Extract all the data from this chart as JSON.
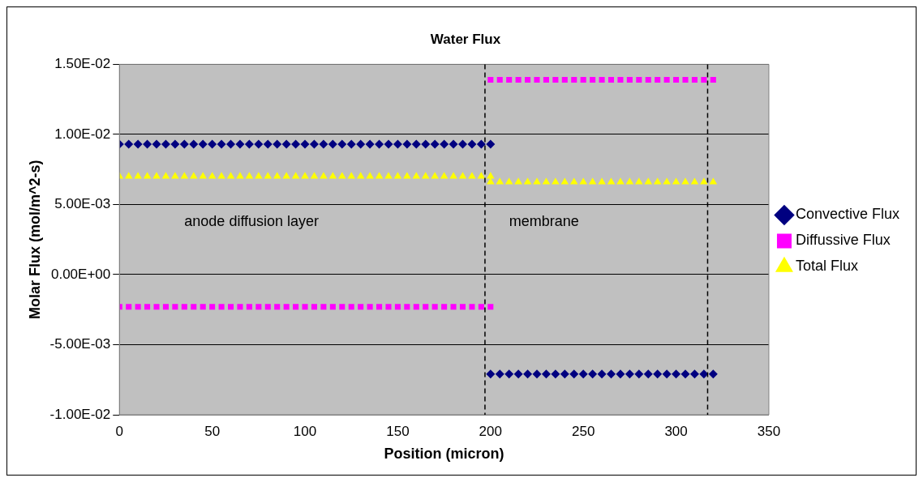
{
  "chart_data": {
    "type": "scatter",
    "title": "Water Flux",
    "xlabel": "Position (micron)",
    "ylabel": "Molar Flux (mol/m^2-s)",
    "x": [
      0,
      5,
      10,
      15,
      20,
      25,
      30,
      35,
      40,
      45,
      50,
      55,
      60,
      65,
      70,
      75,
      80,
      85,
      90,
      95,
      100,
      105,
      110,
      115,
      120,
      125,
      130,
      135,
      140,
      145,
      150,
      155,
      160,
      165,
      170,
      175,
      180,
      185,
      190,
      195,
      200,
      200,
      205,
      210,
      215,
      220,
      225,
      230,
      235,
      240,
      245,
      250,
      255,
      260,
      265,
      270,
      275,
      280,
      285,
      290,
      295,
      300,
      305,
      310,
      315,
      320
    ],
    "series": [
      {
        "name": "Convective Flux",
        "color": "#000080",
        "marker": "diamond",
        "values": [
          0.0093,
          0.0093,
          0.0093,
          0.0093,
          0.0093,
          0.0093,
          0.0093,
          0.0093,
          0.0093,
          0.0093,
          0.0093,
          0.0093,
          0.0093,
          0.0093,
          0.0093,
          0.0093,
          0.0093,
          0.0093,
          0.0093,
          0.0093,
          0.0093,
          0.0093,
          0.0093,
          0.0093,
          0.0093,
          0.0093,
          0.0093,
          0.0093,
          0.0093,
          0.0093,
          0.0093,
          0.0093,
          0.0093,
          0.0093,
          0.0093,
          0.0093,
          0.0093,
          0.0093,
          0.0093,
          0.0093,
          0.0093,
          -0.0071,
          -0.0071,
          -0.0071,
          -0.0071,
          -0.0071,
          -0.0071,
          -0.0071,
          -0.0071,
          -0.0071,
          -0.0071,
          -0.0071,
          -0.0071,
          -0.0071,
          -0.0071,
          -0.0071,
          -0.0071,
          -0.0071,
          -0.0071,
          -0.0071,
          -0.0071,
          -0.0071,
          -0.0071,
          -0.0071,
          -0.0071,
          -0.0071
        ]
      },
      {
        "name": "Diffussive Flux",
        "color": "#ff00ff",
        "marker": "square",
        "values": [
          -0.0023,
          -0.0023,
          -0.0023,
          -0.0023,
          -0.0023,
          -0.0023,
          -0.0023,
          -0.0023,
          -0.0023,
          -0.0023,
          -0.0023,
          -0.0023,
          -0.0023,
          -0.0023,
          -0.0023,
          -0.0023,
          -0.0023,
          -0.0023,
          -0.0023,
          -0.0023,
          -0.0023,
          -0.0023,
          -0.0023,
          -0.0023,
          -0.0023,
          -0.0023,
          -0.0023,
          -0.0023,
          -0.0023,
          -0.0023,
          -0.0023,
          -0.0023,
          -0.0023,
          -0.0023,
          -0.0023,
          -0.0023,
          -0.0023,
          -0.0023,
          -0.0023,
          -0.0023,
          -0.0023,
          0.0139,
          0.0139,
          0.0139,
          0.0139,
          0.0139,
          0.0139,
          0.0139,
          0.0139,
          0.0139,
          0.0139,
          0.0139,
          0.0139,
          0.0139,
          0.0139,
          0.0139,
          0.0139,
          0.0139,
          0.0139,
          0.0139,
          0.0139,
          0.0139,
          0.0139,
          0.0139,
          0.0139,
          0.0139
        ]
      },
      {
        "name": "Total Flux",
        "color": "#ffff00",
        "marker": "triangle",
        "values": [
          0.007,
          0.007,
          0.007,
          0.007,
          0.007,
          0.007,
          0.007,
          0.007,
          0.007,
          0.007,
          0.007,
          0.007,
          0.007,
          0.007,
          0.007,
          0.007,
          0.007,
          0.007,
          0.007,
          0.007,
          0.007,
          0.007,
          0.007,
          0.007,
          0.007,
          0.007,
          0.007,
          0.007,
          0.007,
          0.007,
          0.007,
          0.007,
          0.007,
          0.007,
          0.007,
          0.007,
          0.007,
          0.007,
          0.007,
          0.007,
          0.007,
          0.0066,
          0.0066,
          0.0066,
          0.0066,
          0.0066,
          0.0066,
          0.0066,
          0.0066,
          0.0066,
          0.0066,
          0.0066,
          0.0066,
          0.0066,
          0.0066,
          0.0066,
          0.0066,
          0.0066,
          0.0066,
          0.0066,
          0.0066,
          0.0066,
          0.0066,
          0.0066,
          0.0066,
          0.0066
        ]
      }
    ],
    "xlim": [
      0,
      350
    ],
    "xticks": [
      0,
      50,
      100,
      150,
      200,
      250,
      300,
      350
    ],
    "ylim": [
      -0.01,
      0.015
    ],
    "yticks": [
      {
        "value": -0.01,
        "label": "-1.00E-02"
      },
      {
        "value": -0.005,
        "label": "-5.00E-03"
      },
      {
        "value": 0,
        "label": "0.00E+00"
      },
      {
        "value": 0.005,
        "label": "5.00E-03"
      },
      {
        "value": 0.01,
        "label": "1.00E-02"
      },
      {
        "value": 0.015,
        "label": "1.50E-02"
      }
    ],
    "grid": "y",
    "legend": "right",
    "ref_lines": [
      {
        "axis": "x",
        "value": 197,
        "color": "#000000",
        "line_style": "dashed"
      },
      {
        "axis": "x",
        "value": 317,
        "color": "#000000",
        "line_style": "dashed"
      }
    ],
    "annotations": [
      "anode diffusion layer",
      "membrane"
    ]
  }
}
